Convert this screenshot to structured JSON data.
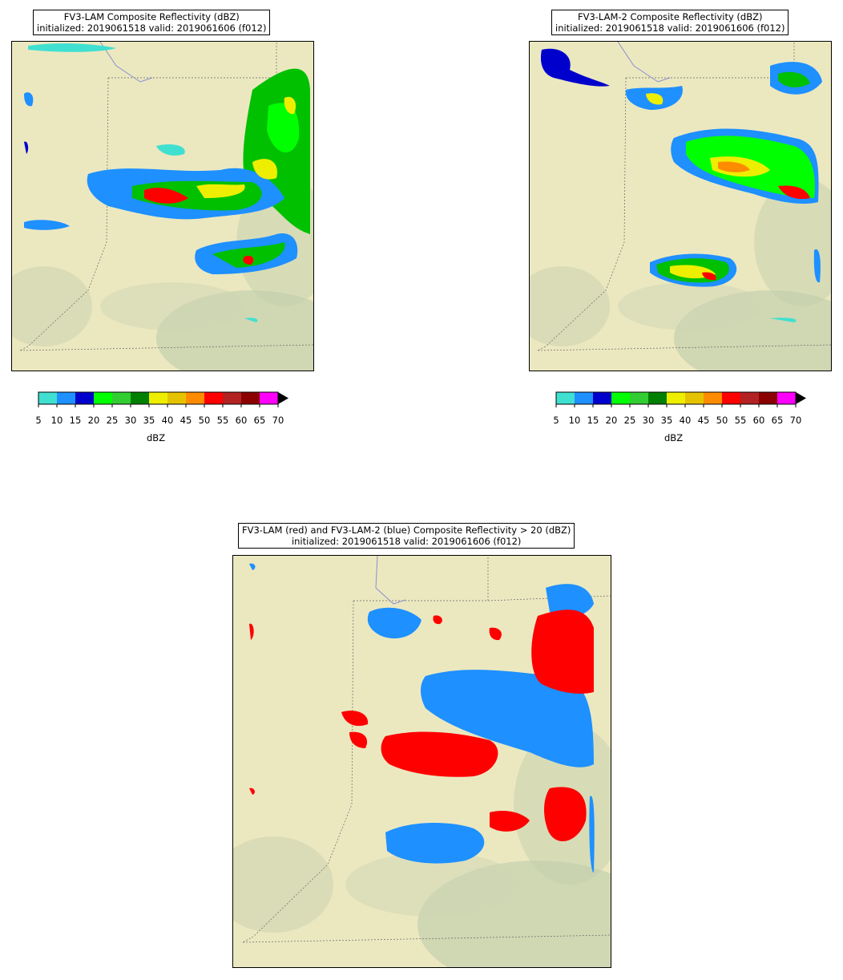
{
  "panels": [
    {
      "id": "fv3-lam",
      "title_line1": "FV3-LAM Composite Reflectivity (dBZ)",
      "title_line2": "initialized: 2019061518 valid: 2019061606 (f012)"
    },
    {
      "id": "fv3-lam-2",
      "title_line1": "FV3-LAM-2 Composite Reflectivity (dBZ)",
      "title_line2": "initialized: 2019061518 valid: 2019061606 (f012)"
    },
    {
      "id": "overlay",
      "title_line1": "FV3-LAM (red) and FV3-LAM-2 (blue) Composite Reflectivity > 20 (dBZ)",
      "title_line2": "initialized: 2019061518 valid: 2019061606 (f012)"
    }
  ],
  "colorbar": {
    "label": "dBZ",
    "ticks": [
      "5",
      "10",
      "15",
      "20",
      "25",
      "30",
      "35",
      "40",
      "45",
      "50",
      "55",
      "60",
      "65",
      "70"
    ],
    "colors": [
      "#40e0d0",
      "#1e90ff",
      "#0000cd",
      "#00ff00",
      "#32cd32",
      "#008000",
      "#eeee00",
      "#e6c300",
      "#ff8c00",
      "#ff0000",
      "#b22222",
      "#8b0000",
      "#ff00ff"
    ],
    "extend_color": "#000000"
  },
  "overlay_colors": {
    "fv3_lam": "#ff0000",
    "fv3_lam_2": "#1e90ff"
  }
}
